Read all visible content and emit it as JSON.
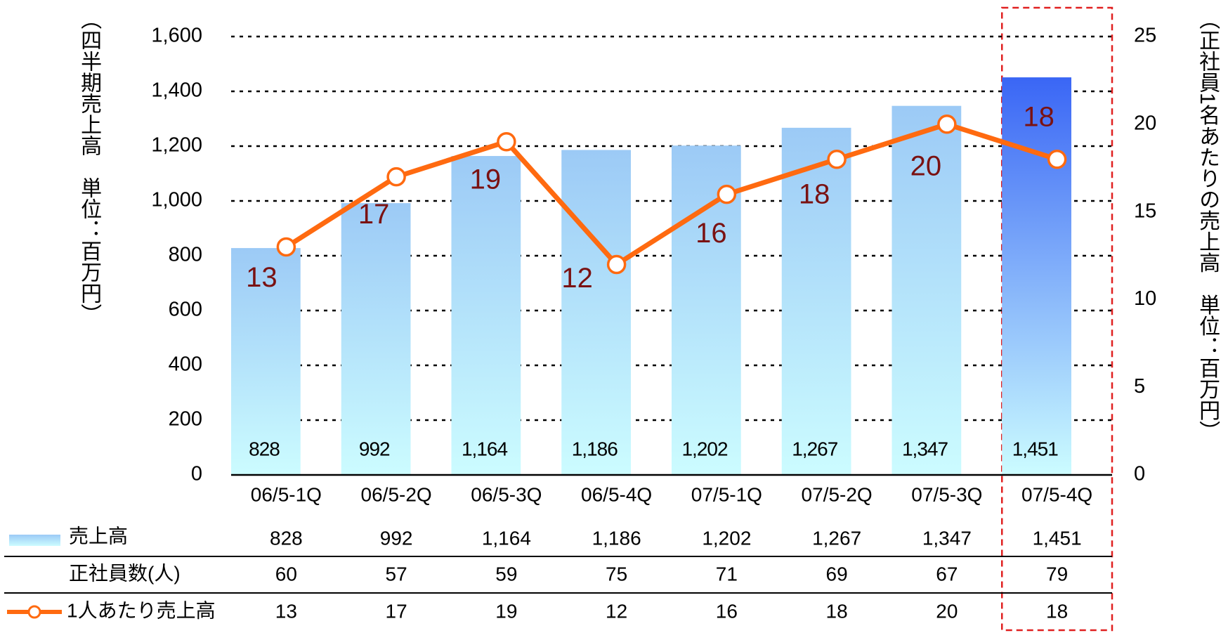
{
  "chart_data": {
    "type": "bar_line",
    "y_label": "（四半期売上高　単位：百万円）",
    "y2_label": "（正社員1名あたりの売上高　単位：百万円）",
    "categories": [
      "06/5-1Q",
      "06/5-2Q",
      "06/5-3Q",
      "06/5-4Q",
      "07/5-1Q",
      "07/5-2Q",
      "07/5-3Q",
      "07/5-4Q"
    ],
    "ylim": [
      0,
      1600
    ],
    "yticks": [
      0,
      200,
      400,
      600,
      800,
      {
        "value": 1000,
        "label": "1,000"
      },
      {
        "value": 1200,
        "label": "1,200"
      },
      {
        "value": 1400,
        "label": "1,400"
      },
      {
        "value": 1600,
        "label": "1,600"
      }
    ],
    "y2lim": [
      0,
      25
    ],
    "y2ticks": [
      0,
      5,
      10,
      15,
      20,
      25
    ],
    "grid": true,
    "series": [
      {
        "name": "売上高",
        "type": "bar",
        "color": "#9ccaf6",
        "colors": [
          "#9ccaf6",
          "#9ccaf6",
          "#9ccaf6",
          "#9ccaf6",
          "#9ccaf6",
          "#9ccaf6",
          "#9ccaf6",
          "#3a66f5"
        ],
        "values": [
          828,
          992,
          1164,
          1186,
          1202,
          1267,
          1347,
          1451
        ],
        "value_labels": [
          "828",
          "992",
          "1,164",
          "1,186",
          "1,202",
          "1,267",
          "1,347",
          "1,451"
        ]
      },
      {
        "name": "1人あたり売上高",
        "type": "line",
        "axis": "y2",
        "color": "#ff6a10",
        "values": [
          13,
          17,
          19,
          12,
          16,
          18,
          20,
          18
        ]
      }
    ],
    "table": {
      "rows": [
        {
          "label": "正社員数(人)",
          "values": [
            60,
            57,
            59,
            75,
            71,
            69,
            67,
            79
          ]
        }
      ]
    },
    "highlight_color": "#e02020"
  }
}
